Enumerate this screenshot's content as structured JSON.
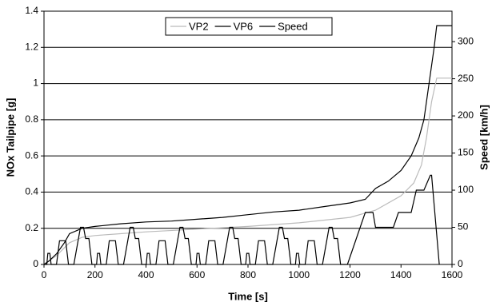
{
  "chart_data": {
    "type": "line",
    "xlabel": "Time [s]",
    "ylabel": "NOx Tailpipe [g]",
    "y2label": "Speed [km/h]",
    "xlim": [
      0,
      1600
    ],
    "xticks": [
      0,
      200,
      400,
      600,
      800,
      1000,
      1200,
      1400,
      1600
    ],
    "ylim": [
      0,
      1.4
    ],
    "yticks": [
      0,
      0.2,
      0.4,
      0.6,
      0.8,
      1,
      1.2,
      1.4
    ],
    "y2lim": [
      0,
      341
    ],
    "y2ticks": [
      0,
      50,
      100,
      150,
      200,
      250,
      300
    ],
    "grid": true,
    "legend": "top",
    "series": [
      {
        "name": "VP2",
        "color": "#bbbbbb",
        "x": [
          0,
          50,
          100,
          150,
          200,
          300,
          400,
          600,
          800,
          1000,
          1200,
          1300,
          1400,
          1450,
          1480,
          1500,
          1520,
          1540,
          1600
        ],
        "values": [
          0,
          0.05,
          0.12,
          0.15,
          0.16,
          0.17,
          0.18,
          0.195,
          0.21,
          0.23,
          0.26,
          0.3,
          0.38,
          0.45,
          0.55,
          0.7,
          0.9,
          1.03,
          1.03
        ]
      },
      {
        "name": "VP6",
        "color": "#000000",
        "x": [
          0,
          20,
          50,
          80,
          100,
          150,
          200,
          300,
          400,
          500,
          600,
          700,
          800,
          900,
          1000,
          1100,
          1200,
          1260,
          1300,
          1350,
          1400,
          1440,
          1470,
          1490,
          1510,
          1530,
          1540,
          1600
        ],
        "values": [
          0,
          0.02,
          0.06,
          0.12,
          0.17,
          0.2,
          0.21,
          0.225,
          0.235,
          0.24,
          0.25,
          0.26,
          0.275,
          0.29,
          0.3,
          0.32,
          0.34,
          0.36,
          0.42,
          0.46,
          0.52,
          0.6,
          0.7,
          0.8,
          1.0,
          1.2,
          1.32,
          1.32
        ]
      },
      {
        "name": "Speed",
        "color": "#000000",
        "axis": "y2",
        "x": [
          0,
          11,
          15,
          23,
          28,
          49,
          61,
          85,
          96,
          117,
          143,
          155,
          163,
          176,
          188,
          206,
          210,
          218,
          223,
          244,
          256,
          280,
          291,
          312,
          338,
          350,
          358,
          371,
          383,
          401,
          405,
          413,
          418,
          439,
          451,
          475,
          486,
          507,
          533,
          545,
          553,
          566,
          578,
          596,
          600,
          608,
          613,
          634,
          646,
          670,
          681,
          702,
          728,
          740,
          748,
          761,
          773,
          791,
          795,
          803,
          808,
          829,
          841,
          865,
          876,
          897,
          923,
          935,
          943,
          956,
          968,
          986,
          990,
          998,
          1003,
          1024,
          1036,
          1060,
          1071,
          1092,
          1118,
          1130,
          1138,
          1151,
          1163,
          1190,
          1260,
          1290,
          1300,
          1370,
          1390,
          1440,
          1460,
          1490,
          1515,
          1520,
          1550
        ],
        "values": [
          0,
          0,
          15,
          15,
          0,
          0,
          32,
          32,
          0,
          0,
          50,
          50,
          35,
          35,
          0,
          0,
          15,
          15,
          0,
          0,
          32,
          32,
          0,
          0,
          50,
          50,
          35,
          35,
          0,
          0,
          15,
          15,
          0,
          0,
          32,
          32,
          0,
          0,
          50,
          50,
          35,
          35,
          0,
          0,
          15,
          15,
          0,
          0,
          32,
          32,
          0,
          0,
          50,
          50,
          35,
          35,
          0,
          0,
          15,
          15,
          0,
          0,
          32,
          32,
          0,
          0,
          50,
          50,
          35,
          35,
          0,
          0,
          15,
          15,
          0,
          0,
          32,
          32,
          0,
          0,
          50,
          50,
          35,
          35,
          0,
          0,
          70,
          70,
          50,
          50,
          70,
          70,
          100,
          100,
          120,
          120,
          0
        ]
      }
    ]
  }
}
